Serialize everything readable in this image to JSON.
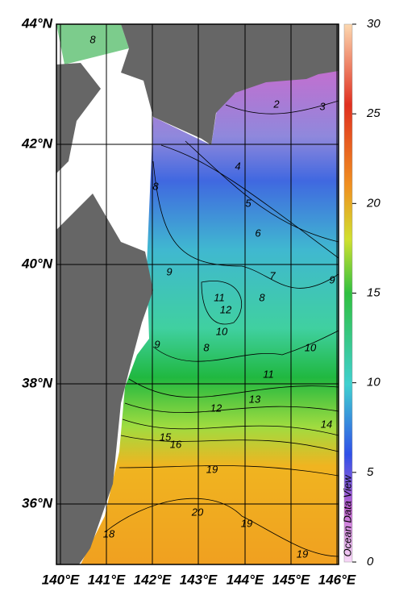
{
  "map": {
    "lat_labels": [
      "44°N",
      "42°N",
      "40°N",
      "38°N",
      "36°N"
    ],
    "lon_labels": [
      "140°E",
      "141°E",
      "142°E",
      "143°E",
      "144°E",
      "145°E",
      "146°E"
    ]
  },
  "colorbar": {
    "range": [
      0,
      30
    ],
    "ticks": [
      0,
      5,
      10,
      15,
      20,
      25,
      30
    ]
  },
  "contour_labels": [
    8,
    2,
    3,
    4,
    8,
    5,
    6,
    7,
    9,
    9,
    11,
    12,
    8,
    10,
    8,
    9,
    10,
    11,
    13,
    12,
    14,
    15,
    16,
    19,
    20,
    19,
    18,
    19
  ],
  "credit": "Ocean Data View"
}
